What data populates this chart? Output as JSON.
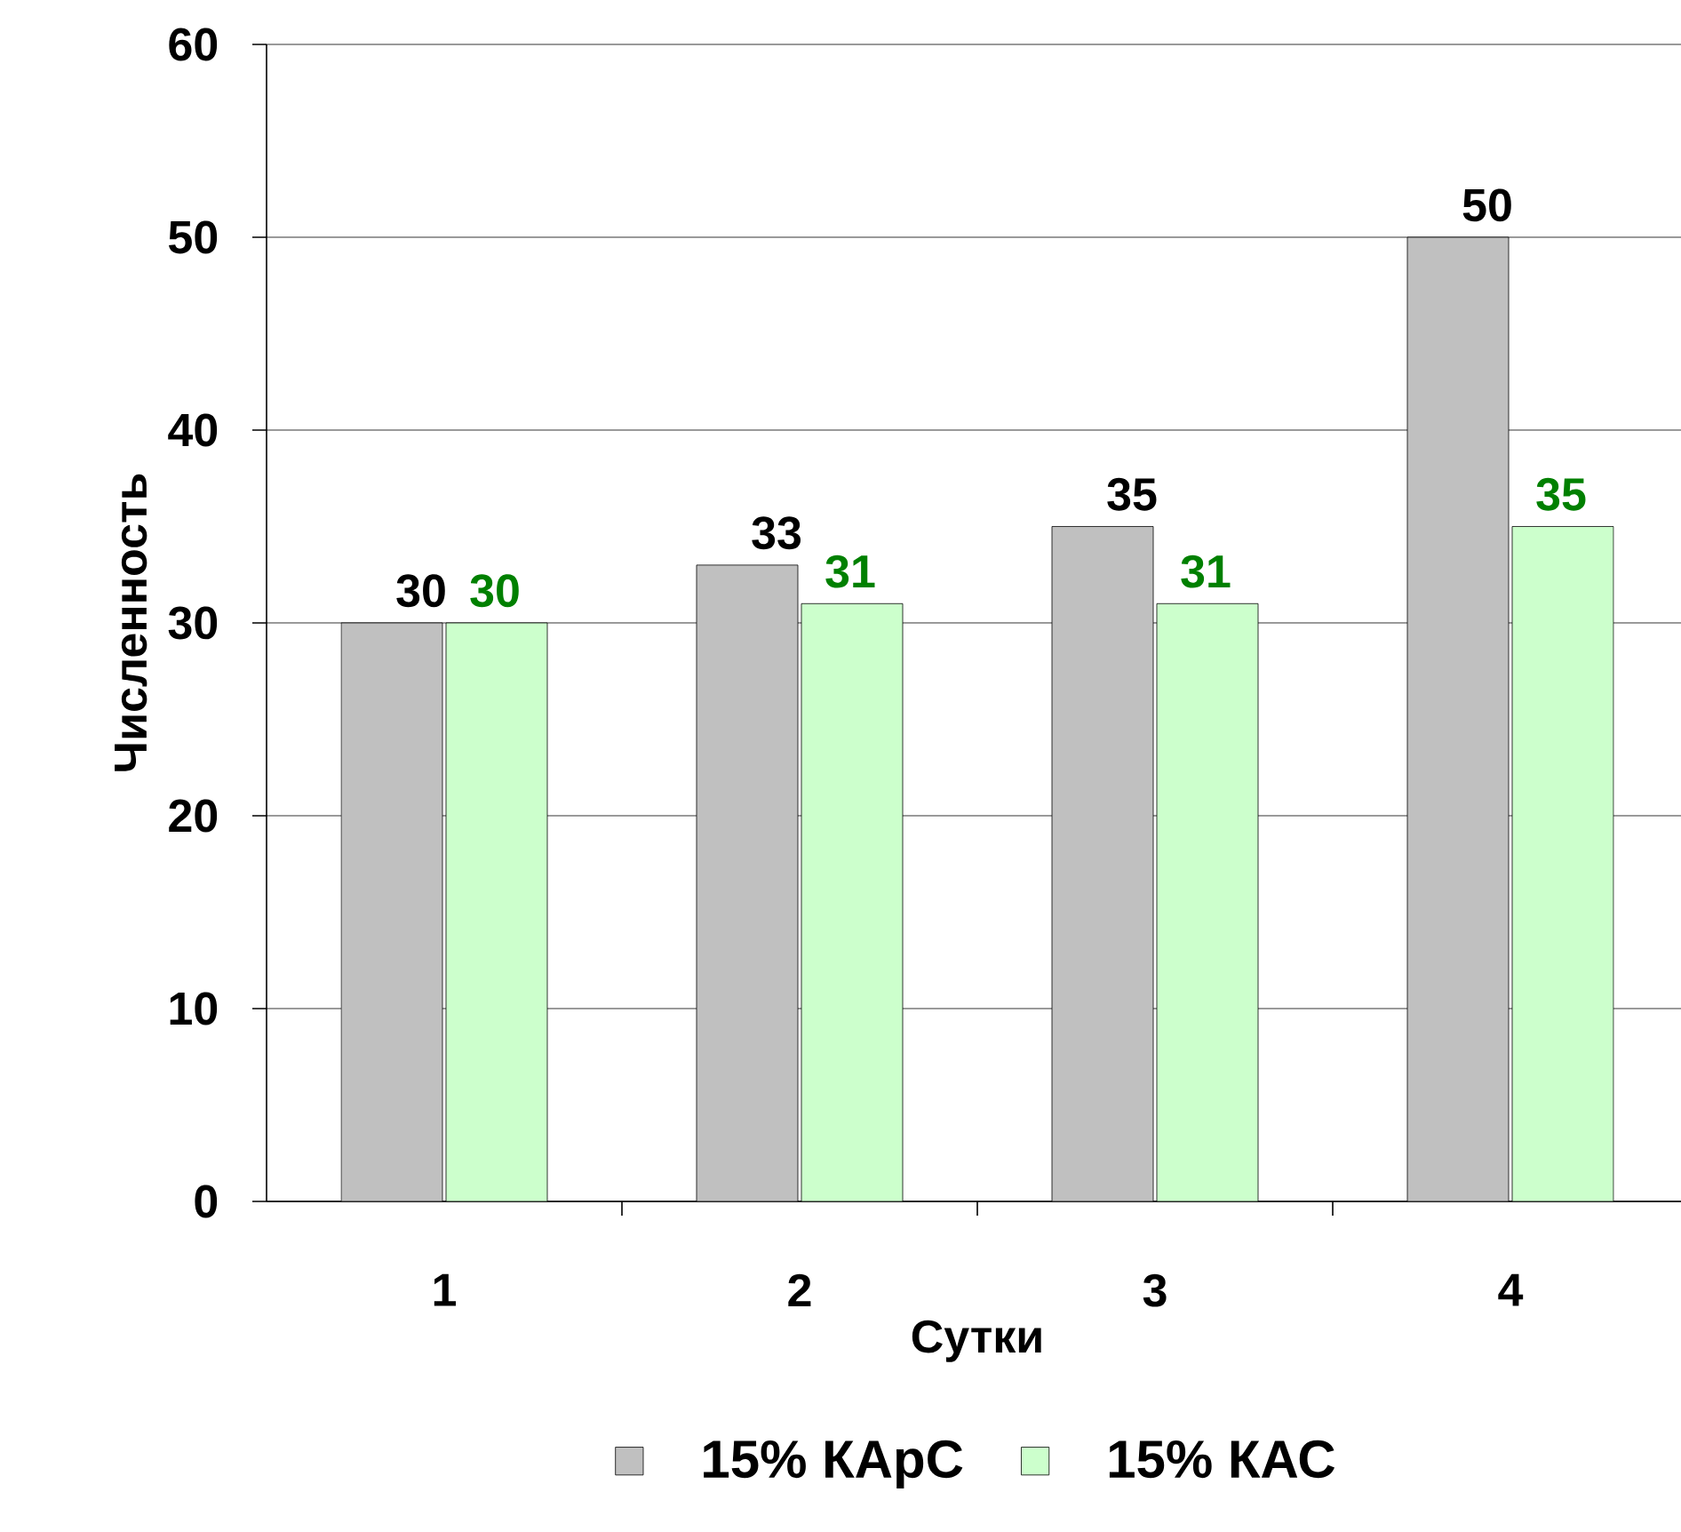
{
  "chart_data": {
    "type": "bar",
    "xlabel": "Сутки",
    "ylabel": "Численность",
    "categories": [
      "1",
      "2",
      "3",
      "4"
    ],
    "series": [
      {
        "name": "15% КАрС",
        "color": "#c0c0c0",
        "values": [
          30,
          33,
          35,
          50
        ]
      },
      {
        "name": "15% КАС",
        "color": "#ccffcc",
        "values": [
          30,
          31,
          31,
          35
        ]
      }
    ],
    "ylim": [
      0,
      60
    ],
    "yticks": [
      0,
      10,
      20,
      30,
      40,
      50,
      60
    ],
    "grid": "y",
    "legend": "bottom",
    "data_labels": true
  }
}
